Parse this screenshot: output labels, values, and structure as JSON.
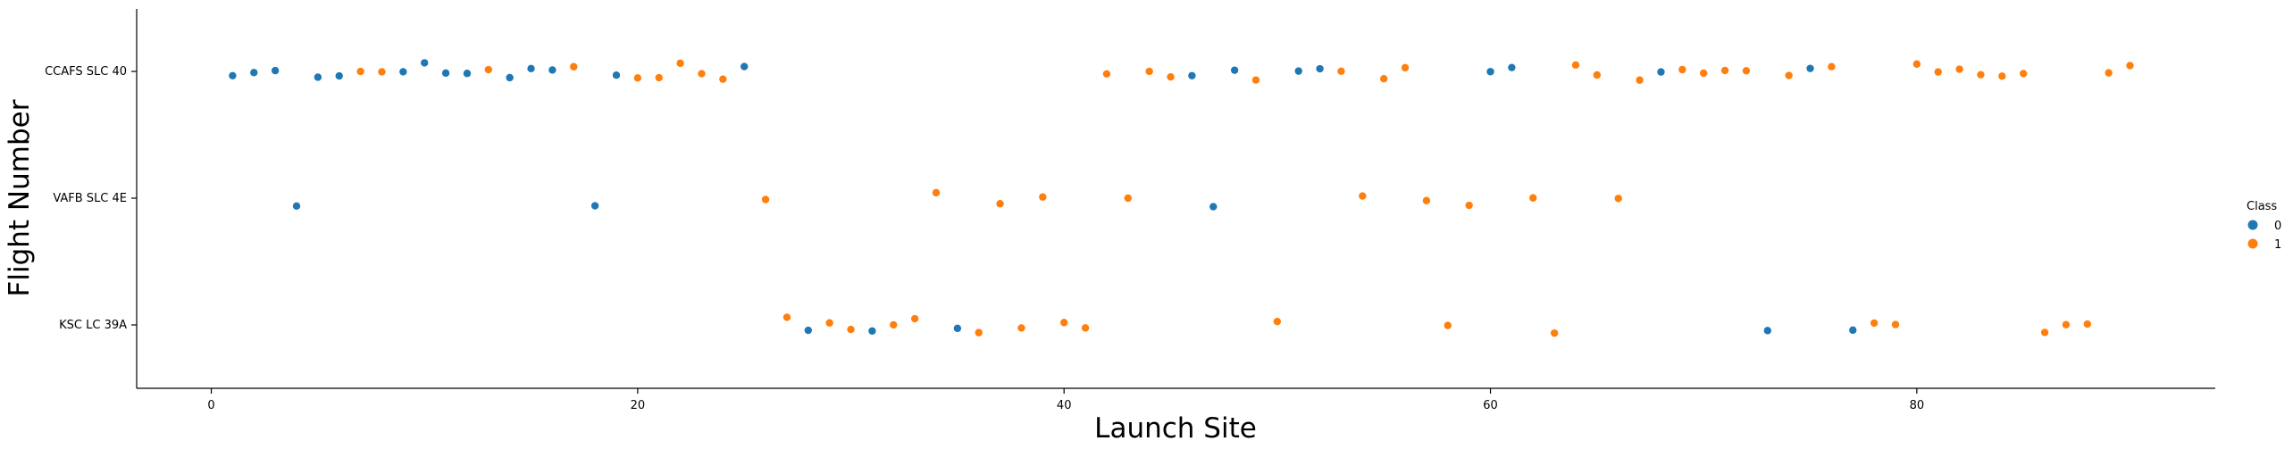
{
  "chart_data": {
    "type": "scatter",
    "title": "",
    "xlabel": "Launch Site",
    "ylabel": "Flight Number",
    "xlim": [
      -3.5,
      94
    ],
    "x_ticks": [
      0,
      20,
      40,
      60,
      80
    ],
    "categories": [
      "CCAFS SLC 40",
      "VAFB SLC 4E",
      "KSC LC 39A"
    ],
    "grid": false,
    "legend": {
      "title": "Class",
      "position": "right",
      "entries": [
        {
          "label": "0",
          "color": "#1f77b4"
        },
        {
          "label": "1",
          "color": "#ff7f0e"
        }
      ]
    },
    "series": [
      {
        "name": "0",
        "color": "#1f77b4",
        "points": [
          {
            "x": 1,
            "site": "CCAFS SLC 40"
          },
          {
            "x": 2,
            "site": "CCAFS SLC 40"
          },
          {
            "x": 3,
            "site": "CCAFS SLC 40"
          },
          {
            "x": 4,
            "site": "VAFB SLC 4E"
          },
          {
            "x": 5,
            "site": "CCAFS SLC 40"
          },
          {
            "x": 6,
            "site": "CCAFS SLC 40"
          },
          {
            "x": 9,
            "site": "CCAFS SLC 40"
          },
          {
            "x": 10,
            "site": "CCAFS SLC 40"
          },
          {
            "x": 11,
            "site": "CCAFS SLC 40"
          },
          {
            "x": 12,
            "site": "CCAFS SLC 40"
          },
          {
            "x": 14,
            "site": "CCAFS SLC 40"
          },
          {
            "x": 15,
            "site": "CCAFS SLC 40"
          },
          {
            "x": 16,
            "site": "CCAFS SLC 40"
          },
          {
            "x": 18,
            "site": "VAFB SLC 4E"
          },
          {
            "x": 19,
            "site": "CCAFS SLC 40"
          },
          {
            "x": 25,
            "site": "CCAFS SLC 40"
          },
          {
            "x": 28,
            "site": "KSC LC 39A"
          },
          {
            "x": 31,
            "site": "KSC LC 39A"
          },
          {
            "x": 35,
            "site": "KSC LC 39A"
          },
          {
            "x": 46,
            "site": "CCAFS SLC 40"
          },
          {
            "x": 47,
            "site": "VAFB SLC 4E"
          },
          {
            "x": 48,
            "site": "CCAFS SLC 40"
          },
          {
            "x": 51,
            "site": "CCAFS SLC 40"
          },
          {
            "x": 52,
            "site": "CCAFS SLC 40"
          },
          {
            "x": 60,
            "site": "CCAFS SLC 40"
          },
          {
            "x": 61,
            "site": "CCAFS SLC 40"
          },
          {
            "x": 68,
            "site": "CCAFS SLC 40"
          },
          {
            "x": 73,
            "site": "KSC LC 39A"
          },
          {
            "x": 75,
            "site": "CCAFS SLC 40"
          },
          {
            "x": 77,
            "site": "KSC LC 39A"
          }
        ]
      },
      {
        "name": "1",
        "color": "#ff7f0e",
        "points": [
          {
            "x": 7,
            "site": "CCAFS SLC 40"
          },
          {
            "x": 8,
            "site": "CCAFS SLC 40"
          },
          {
            "x": 13,
            "site": "CCAFS SLC 40"
          },
          {
            "x": 17,
            "site": "CCAFS SLC 40"
          },
          {
            "x": 20,
            "site": "CCAFS SLC 40"
          },
          {
            "x": 21,
            "site": "CCAFS SLC 40"
          },
          {
            "x": 22,
            "site": "CCAFS SLC 40"
          },
          {
            "x": 23,
            "site": "CCAFS SLC 40"
          },
          {
            "x": 24,
            "site": "CCAFS SLC 40"
          },
          {
            "x": 26,
            "site": "VAFB SLC 4E"
          },
          {
            "x": 27,
            "site": "KSC LC 39A"
          },
          {
            "x": 29,
            "site": "KSC LC 39A"
          },
          {
            "x": 30,
            "site": "KSC LC 39A"
          },
          {
            "x": 32,
            "site": "KSC LC 39A"
          },
          {
            "x": 33,
            "site": "KSC LC 39A"
          },
          {
            "x": 34,
            "site": "VAFB SLC 4E"
          },
          {
            "x": 36,
            "site": "KSC LC 39A"
          },
          {
            "x": 37,
            "site": "VAFB SLC 4E"
          },
          {
            "x": 38,
            "site": "KSC LC 39A"
          },
          {
            "x": 39,
            "site": "VAFB SLC 4E"
          },
          {
            "x": 40,
            "site": "KSC LC 39A"
          },
          {
            "x": 41,
            "site": "KSC LC 39A"
          },
          {
            "x": 42,
            "site": "CCAFS SLC 40"
          },
          {
            "x": 43,
            "site": "VAFB SLC 4E"
          },
          {
            "x": 44,
            "site": "CCAFS SLC 40"
          },
          {
            "x": 45,
            "site": "CCAFS SLC 40"
          },
          {
            "x": 49,
            "site": "CCAFS SLC 40"
          },
          {
            "x": 50,
            "site": "KSC LC 39A"
          },
          {
            "x": 53,
            "site": "CCAFS SLC 40"
          },
          {
            "x": 54,
            "site": "VAFB SLC 4E"
          },
          {
            "x": 55,
            "site": "CCAFS SLC 40"
          },
          {
            "x": 56,
            "site": "CCAFS SLC 40"
          },
          {
            "x": 57,
            "site": "VAFB SLC 4E"
          },
          {
            "x": 58,
            "site": "KSC LC 39A"
          },
          {
            "x": 59,
            "site": "VAFB SLC 4E"
          },
          {
            "x": 62,
            "site": "VAFB SLC 4E"
          },
          {
            "x": 63,
            "site": "KSC LC 39A"
          },
          {
            "x": 64,
            "site": "CCAFS SLC 40"
          },
          {
            "x": 65,
            "site": "CCAFS SLC 40"
          },
          {
            "x": 66,
            "site": "VAFB SLC 4E"
          },
          {
            "x": 67,
            "site": "CCAFS SLC 40"
          },
          {
            "x": 69,
            "site": "CCAFS SLC 40"
          },
          {
            "x": 70,
            "site": "CCAFS SLC 40"
          },
          {
            "x": 71,
            "site": "CCAFS SLC 40"
          },
          {
            "x": 72,
            "site": "CCAFS SLC 40"
          },
          {
            "x": 74,
            "site": "CCAFS SLC 40"
          },
          {
            "x": 76,
            "site": "CCAFS SLC 40"
          },
          {
            "x": 78,
            "site": "KSC LC 39A"
          },
          {
            "x": 79,
            "site": "KSC LC 39A"
          },
          {
            "x": 80,
            "site": "CCAFS SLC 40"
          },
          {
            "x": 81,
            "site": "CCAFS SLC 40"
          },
          {
            "x": 82,
            "site": "CCAFS SLC 40"
          },
          {
            "x": 83,
            "site": "CCAFS SLC 40"
          },
          {
            "x": 84,
            "site": "CCAFS SLC 40"
          },
          {
            "x": 85,
            "site": "CCAFS SLC 40"
          },
          {
            "x": 86,
            "site": "KSC LC 39A"
          },
          {
            "x": 87,
            "site": "KSC LC 39A"
          },
          {
            "x": 88,
            "site": "KSC LC 39A"
          },
          {
            "x": 89,
            "site": "CCAFS SLC 40"
          },
          {
            "x": 90,
            "site": "CCAFS SLC 40"
          }
        ]
      }
    ]
  }
}
